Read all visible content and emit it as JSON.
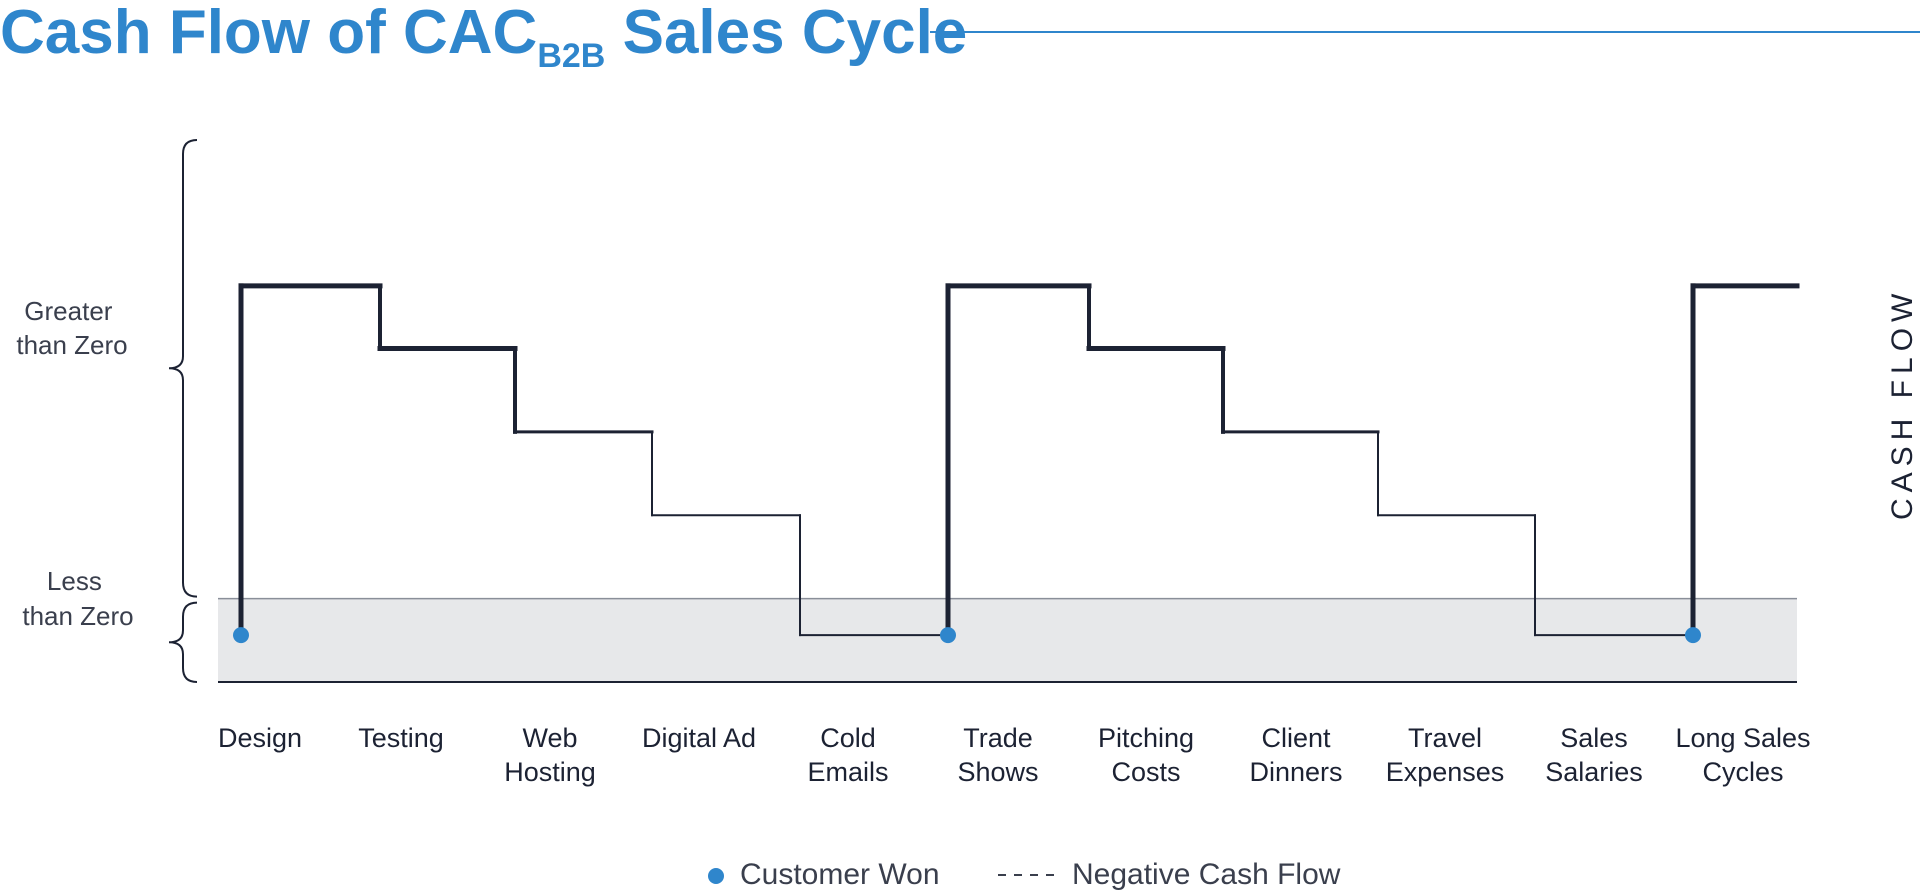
{
  "title": {
    "prefix": "Cash Flow of CAC",
    "subscript": "B2B",
    "suffix": " Sales Cycle"
  },
  "colors": {
    "accent": "#2f86cc",
    "line": "#1c2233",
    "negative_region": "#e7e8ea"
  },
  "chart_data": {
    "type": "line",
    "step": true,
    "categories": [
      [
        "Design"
      ],
      [
        "Testing"
      ],
      [
        "Web",
        "Hosting"
      ],
      [
        "Digital Ad"
      ],
      [
        "Cold",
        "Emails"
      ],
      [
        "Trade",
        "Shows"
      ],
      [
        "Pitching",
        "Costs"
      ],
      [
        "Client",
        "Dinners"
      ],
      [
        "Travel",
        "Expenses"
      ],
      [
        "Sales",
        "Salaries"
      ],
      [
        "Long Sales",
        "Cycles"
      ]
    ],
    "values": [
      3,
      2.4,
      1.6,
      0.8,
      -0.35,
      3,
      2.4,
      1.6,
      0.8,
      -0.35,
      3
    ],
    "ylim": [
      -0.8,
      4.4
    ],
    "zero": 0,
    "customer_won_categories": [
      0,
      5,
      10
    ],
    "y_bands": [
      {
        "label": [
          "Greater",
          "than Zero"
        ],
        "range": [
          0,
          4.4
        ]
      },
      {
        "label": [
          "Less",
          "than Zero"
        ],
        "range": [
          -0.8,
          0
        ]
      }
    ],
    "y_side_label": "CASH FLOW",
    "legend": {
      "placement": "bottom-center",
      "customer_won": "Customer Won",
      "negative_cash_flow": "Negative Cash Flow"
    }
  }
}
